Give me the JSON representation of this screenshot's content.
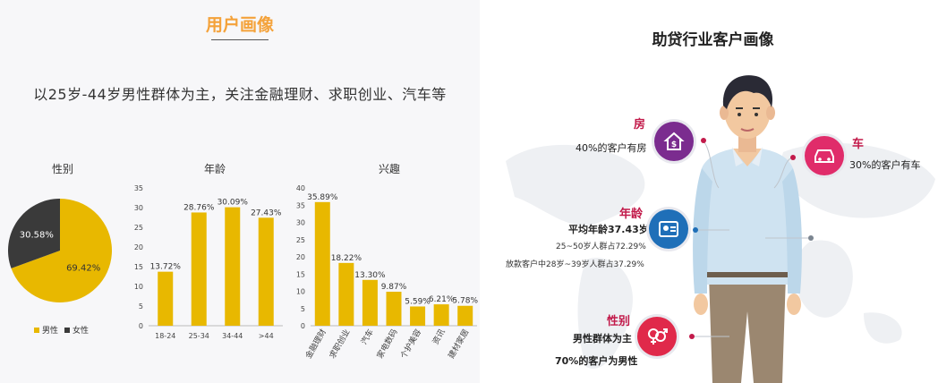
{
  "left_panel": {
    "title": "用户画像",
    "subtitle": "以25岁-44岁男性群体为主，关注金融理财、求职创业、汽车等"
  },
  "right_panel": {
    "title": "助贷行业客户画像",
    "house": {
      "heading": "房",
      "text": "40%的客户有房"
    },
    "car": {
      "heading": "车",
      "text": "30%的客户有车"
    },
    "age": {
      "heading": "年龄",
      "line1": "平均年龄37.43岁",
      "line2": "25~50岁人群占72.29%",
      "line3": "放款客户中28岁~39岁人群占37.29%"
    },
    "gender": {
      "heading": "性别",
      "line1": "男性群体为主",
      "line2": "70%的客户为男性"
    },
    "icons": [
      "house-dollar-icon",
      "car-icon",
      "id-card-icon",
      "gender-icon"
    ],
    "colors": {
      "house": "#7b2c8f",
      "car": "#e02c6a",
      "age": "#1f6fb8",
      "gender": "#e0294a",
      "accent": "#c21a4a"
    }
  },
  "chart_data": [
    {
      "type": "pie",
      "title": "性别",
      "categories": [
        "男性",
        "女性"
      ],
      "values": [
        69.42,
        30.58
      ],
      "labels": [
        "69.42%",
        "30.58%"
      ],
      "colors": [
        "#e8b800",
        "#3a3a3a"
      ],
      "legend": "bottom"
    },
    {
      "type": "bar",
      "title": "年龄",
      "categories": [
        "18-24",
        "25-34",
        "34-44",
        ">44"
      ],
      "values": [
        13.72,
        28.76,
        30.09,
        27.43
      ],
      "labels": [
        "13.72%",
        "28.76%",
        "30.09%",
        "27.43%"
      ],
      "ylim": [
        0,
        35
      ],
      "yticks": [
        "0",
        "5",
        "10",
        "15",
        "20",
        "25",
        "30",
        "35"
      ],
      "color": "#e8b800",
      "grid": false
    },
    {
      "type": "bar",
      "title": "兴趣",
      "categories": [
        "金融理财",
        "求职创业",
        "汽车",
        "家电数码",
        "个护美容",
        "资讯",
        "建材家居"
      ],
      "values": [
        35.89,
        18.22,
        13.3,
        9.87,
        5.59,
        6.21,
        5.78
      ],
      "labels": [
        "35.89%",
        "18.22%",
        "13.30%",
        "9.87%",
        "5.59%",
        "6.21%",
        "5.78%"
      ],
      "ylim": [
        0,
        40
      ],
      "yticks": [
        "0",
        "5",
        "10",
        "15",
        "20",
        "25",
        "30",
        "35",
        "40"
      ],
      "color": "#e8b800",
      "grid": false
    }
  ]
}
